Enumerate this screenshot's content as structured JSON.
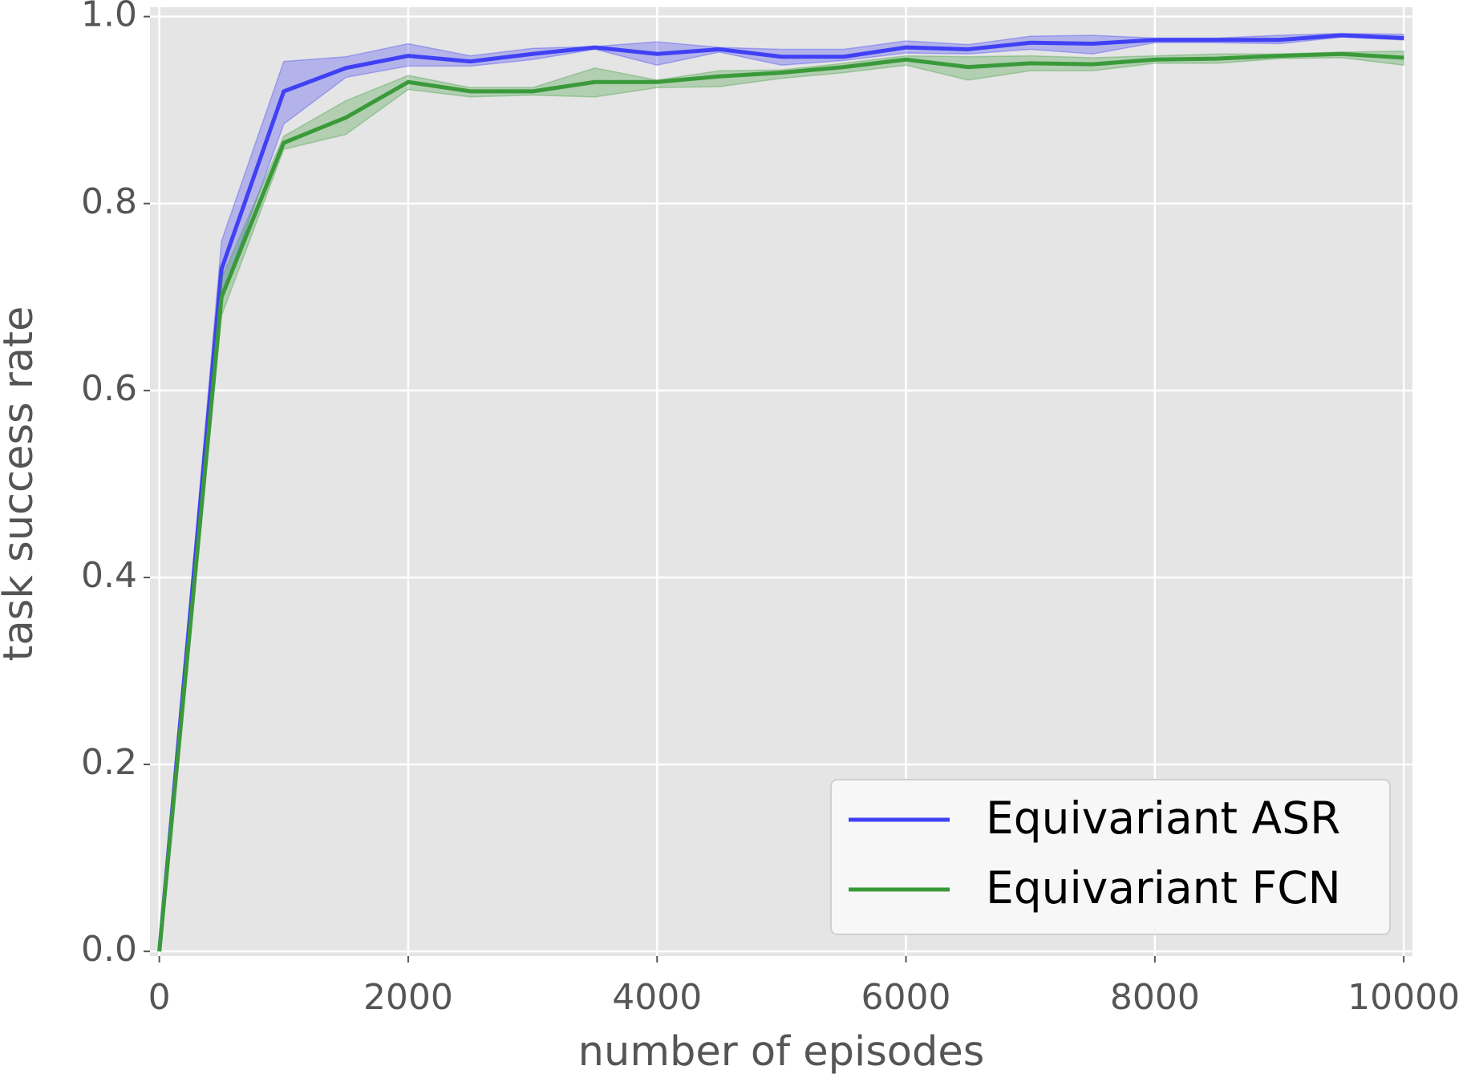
{
  "chart_data": {
    "type": "line",
    "x_label": "number of episodes",
    "y_label": "task success rate",
    "x": [
      0,
      500,
      1000,
      1500,
      2000,
      2500,
      3000,
      3500,
      4000,
      4500,
      5000,
      5500,
      6000,
      6500,
      7000,
      7500,
      8000,
      8500,
      9000,
      9500,
      10000
    ],
    "series": [
      {
        "name": "Equivariant ASR",
        "color": "#4040f5",
        "values": [
          0,
          0.73,
          0.92,
          0.945,
          0.958,
          0.952,
          0.96,
          0.967,
          0.96,
          0.965,
          0.957,
          0.957,
          0.967,
          0.965,
          0.972,
          0.971,
          0.975,
          0.975,
          0.975,
          0.98,
          0.977
        ],
        "upper": [
          0,
          0.76,
          0.952,
          0.957,
          0.971,
          0.958,
          0.966,
          0.968,
          0.973,
          0.967,
          0.965,
          0.965,
          0.974,
          0.97,
          0.979,
          0.98,
          0.977,
          0.977,
          0.98,
          0.982,
          0.981
        ],
        "lower": [
          0,
          0.7,
          0.885,
          0.935,
          0.947,
          0.947,
          0.954,
          0.965,
          0.948,
          0.962,
          0.948,
          0.953,
          0.961,
          0.96,
          0.965,
          0.96,
          0.972,
          0.972,
          0.971,
          0.978,
          0.975
        ]
      },
      {
        "name": "Equivariant FCN",
        "color": "#3a9a3a",
        "values": [
          0,
          0.7,
          0.865,
          0.892,
          0.93,
          0.92,
          0.92,
          0.93,
          0.93,
          0.936,
          0.94,
          0.946,
          0.954,
          0.946,
          0.95,
          0.949,
          0.954,
          0.955,
          0.958,
          0.96,
          0.956
        ],
        "upper": [
          0,
          0.72,
          0.872,
          0.91,
          0.937,
          0.924,
          0.924,
          0.945,
          0.932,
          0.942,
          0.943,
          0.95,
          0.958,
          0.957,
          0.958,
          0.956,
          0.958,
          0.96,
          0.96,
          0.962,
          0.963
        ],
        "lower": [
          0,
          0.68,
          0.858,
          0.874,
          0.922,
          0.914,
          0.916,
          0.914,
          0.924,
          0.925,
          0.934,
          0.94,
          0.948,
          0.932,
          0.942,
          0.942,
          0.95,
          0.95,
          0.955,
          0.956,
          0.948
        ]
      }
    ],
    "xlim": [
      -75,
      10070
    ],
    "ylim": [
      -0.005,
      1.01
    ],
    "xticks": [
      0,
      2000,
      4000,
      6000,
      8000,
      10000
    ],
    "yticks": [
      {
        "value": 0,
        "label": "0.0"
      },
      0.2,
      0.4,
      0.6,
      0.8,
      {
        "value": 1,
        "label": "1.0"
      }
    ],
    "grid": true,
    "legend": "lower right"
  }
}
